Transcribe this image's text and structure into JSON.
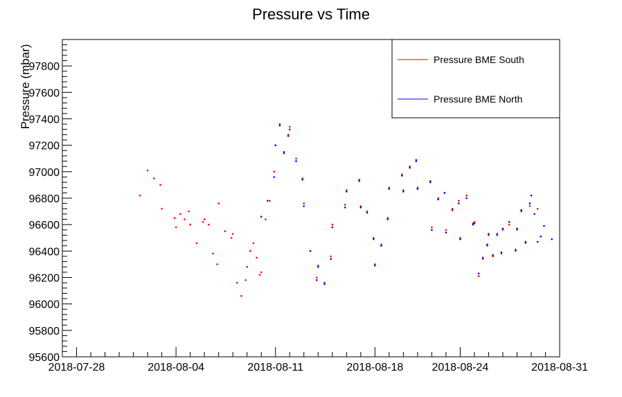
{
  "chart_data": {
    "type": "scatter",
    "title": "Pressure vs Time",
    "xlabel": "",
    "ylabel": "Pressure (mbar)",
    "x_axis_kind": "date",
    "xlim": [
      "2018-07-27",
      "2018-08-31"
    ],
    "ylim": [
      95600,
      98000
    ],
    "x_tick_labels": [
      "2018-07-28",
      "2018-08-04",
      "2018-08-11",
      "2018-08-18",
      "2018-08-24",
      "2018-08-31"
    ],
    "y_tick_labels": [
      "95600",
      "95800",
      "96000",
      "96200",
      "96400",
      "96600",
      "96800",
      "97000",
      "97200",
      "97400",
      "97600",
      "97800"
    ],
    "grid": false,
    "legend_position": "top-right",
    "series": [
      {
        "name": "Pressure BME South",
        "color": "#ff0000",
        "points": [
          [
            "2018-08-01",
            96820
          ],
          [
            "2018-08-02",
            97010
          ],
          [
            "2018-08-02",
            96950
          ],
          [
            "2018-08-02",
            96900
          ],
          [
            "2018-08-03",
            96720
          ],
          [
            "2018-08-03",
            96650
          ],
          [
            "2018-08-04",
            96580
          ],
          [
            "2018-08-04",
            96680
          ],
          [
            "2018-08-04",
            96640
          ],
          [
            "2018-08-04",
            96700
          ],
          [
            "2018-08-05",
            96600
          ],
          [
            "2018-08-05",
            96460
          ],
          [
            "2018-08-05",
            96620
          ],
          [
            "2018-08-06",
            96640
          ],
          [
            "2018-08-06",
            96600
          ],
          [
            "2018-08-06",
            96380
          ],
          [
            "2018-08-06",
            96300
          ],
          [
            "2018-08-07",
            96760
          ],
          [
            "2018-08-07",
            96550
          ],
          [
            "2018-08-07",
            96500
          ],
          [
            "2018-08-08",
            96530
          ],
          [
            "2018-08-08",
            96160
          ],
          [
            "2018-08-08",
            96060
          ],
          [
            "2018-08-08",
            96180
          ],
          [
            "2018-08-09",
            96280
          ],
          [
            "2018-08-09",
            96400
          ],
          [
            "2018-08-09",
            96460
          ],
          [
            "2018-08-09",
            96350
          ],
          [
            "2018-08-09",
            96220
          ],
          [
            "2018-08-10",
            96240
          ],
          [
            "2018-08-10",
            96640
          ],
          [
            "2018-08-10",
            96780
          ],
          [
            "2018-08-10",
            97000
          ],
          [
            "2018-08-11",
            97200
          ],
          [
            "2018-08-11",
            97360
          ],
          [
            "2018-08-11",
            97150
          ],
          [
            "2018-08-11",
            97280
          ],
          [
            "2018-08-12",
            97340
          ],
          [
            "2018-08-12",
            97100
          ],
          [
            "2018-08-12",
            96950
          ],
          [
            "2018-08-13",
            96760
          ],
          [
            "2018-08-13",
            96400
          ],
          [
            "2018-08-13",
            96200
          ],
          [
            "2018-08-14",
            96290
          ],
          [
            "2018-08-14",
            96160
          ],
          [
            "2018-08-14",
            96360
          ],
          [
            "2018-08-15",
            96600
          ],
          [
            "2018-08-15",
            96750
          ],
          [
            "2018-08-16",
            96860
          ],
          [
            "2018-08-16",
            96940
          ],
          [
            "2018-08-17",
            96740
          ],
          [
            "2018-08-17",
            96700
          ],
          [
            "2018-08-17",
            96500
          ],
          [
            "2018-08-18",
            96300
          ],
          [
            "2018-08-18",
            96450
          ],
          [
            "2018-08-18",
            96650
          ],
          [
            "2018-08-19",
            96880
          ],
          [
            "2018-08-19",
            96980
          ],
          [
            "2018-08-20",
            96860
          ],
          [
            "2018-08-20",
            97040
          ],
          [
            "2018-08-20",
            97090
          ],
          [
            "2018-08-21",
            96880
          ],
          [
            "2018-08-21",
            96930
          ],
          [
            "2018-08-22",
            96580
          ],
          [
            "2018-08-22",
            96800
          ],
          [
            "2018-08-22",
            96840
          ],
          [
            "2018-08-23",
            96560
          ],
          [
            "2018-08-23",
            96720
          ],
          [
            "2018-08-23",
            96780
          ],
          [
            "2018-08-24",
            96500
          ],
          [
            "2018-08-24",
            96820
          ],
          [
            "2018-08-24",
            96610
          ],
          [
            "2018-08-25",
            96620
          ],
          [
            "2018-08-25",
            96210
          ],
          [
            "2018-08-25",
            96340
          ],
          [
            "2018-08-25",
            96440
          ],
          [
            "2018-08-26",
            96520
          ],
          [
            "2018-08-26",
            96360
          ],
          [
            "2018-08-26",
            96520
          ],
          [
            "2018-08-26",
            96380
          ],
          [
            "2018-08-27",
            96560
          ],
          [
            "2018-08-27",
            96600
          ],
          [
            "2018-08-27",
            96400
          ],
          [
            "2018-08-28",
            96560
          ],
          [
            "2018-08-28",
            96700
          ],
          [
            "2018-08-28",
            96460
          ],
          [
            "2018-08-28",
            96740
          ],
          [
            "2018-08-29",
            96720
          ]
        ]
      },
      {
        "name": "Pressure BME North",
        "color": "#0000ff",
        "points": [
          [
            "2018-08-10",
            96660
          ],
          [
            "2018-08-10",
            96780
          ],
          [
            "2018-08-10",
            96960
          ],
          [
            "2018-08-11",
            97200
          ],
          [
            "2018-08-11",
            97350
          ],
          [
            "2018-08-11",
            97140
          ],
          [
            "2018-08-11",
            97270
          ],
          [
            "2018-08-12",
            97320
          ],
          [
            "2018-08-12",
            97080
          ],
          [
            "2018-08-12",
            96940
          ],
          [
            "2018-08-13",
            96740
          ],
          [
            "2018-08-13",
            96400
          ],
          [
            "2018-08-13",
            96180
          ],
          [
            "2018-08-14",
            96280
          ],
          [
            "2018-08-14",
            96150
          ],
          [
            "2018-08-14",
            96340
          ],
          [
            "2018-08-15",
            96580
          ],
          [
            "2018-08-15",
            96730
          ],
          [
            "2018-08-16",
            96850
          ],
          [
            "2018-08-16",
            96930
          ],
          [
            "2018-08-17",
            96730
          ],
          [
            "2018-08-17",
            96690
          ],
          [
            "2018-08-17",
            96490
          ],
          [
            "2018-08-18",
            96290
          ],
          [
            "2018-08-18",
            96440
          ],
          [
            "2018-08-18",
            96640
          ],
          [
            "2018-08-19",
            96870
          ],
          [
            "2018-08-19",
            96970
          ],
          [
            "2018-08-20",
            96850
          ],
          [
            "2018-08-20",
            97030
          ],
          [
            "2018-08-20",
            97080
          ],
          [
            "2018-08-21",
            96870
          ],
          [
            "2018-08-21",
            96920
          ],
          [
            "2018-08-22",
            96560
          ],
          [
            "2018-08-22",
            96790
          ],
          [
            "2018-08-22",
            96840
          ],
          [
            "2018-08-23",
            96540
          ],
          [
            "2018-08-23",
            96710
          ],
          [
            "2018-08-23",
            96760
          ],
          [
            "2018-08-24",
            96490
          ],
          [
            "2018-08-24",
            96800
          ],
          [
            "2018-08-24",
            96600
          ],
          [
            "2018-08-25",
            96610
          ],
          [
            "2018-08-25",
            96230
          ],
          [
            "2018-08-25",
            96350
          ],
          [
            "2018-08-25",
            96450
          ],
          [
            "2018-08-26",
            96530
          ],
          [
            "2018-08-26",
            96370
          ],
          [
            "2018-08-26",
            96530
          ],
          [
            "2018-08-26",
            96390
          ],
          [
            "2018-08-27",
            96570
          ],
          [
            "2018-08-27",
            96620
          ],
          [
            "2018-08-27",
            96410
          ],
          [
            "2018-08-28",
            96570
          ],
          [
            "2018-08-28",
            96710
          ],
          [
            "2018-08-28",
            96470
          ],
          [
            "2018-08-28",
            96760
          ],
          [
            "2018-08-29",
            96820
          ],
          [
            "2018-08-29",
            96680
          ],
          [
            "2018-08-29",
            96470
          ],
          [
            "2018-08-29",
            96510
          ],
          [
            "2018-08-29",
            96590
          ],
          [
            "2018-08-30",
            96490
          ]
        ]
      }
    ]
  }
}
